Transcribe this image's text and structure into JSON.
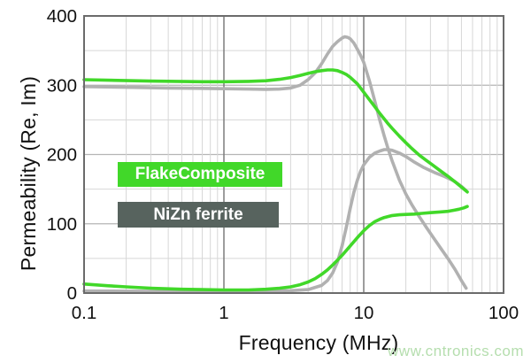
{
  "colors": {
    "flake_green": "#41d829",
    "nizn_gray": "#b1b1b1",
    "nizn_box": "#57635e",
    "legend_text": "#ffffff",
    "axis_text": "#111111",
    "plot_border": "#6b6b6b",
    "grid_major_v": "#7d7d7d",
    "grid_major_h": "#b5b5b5",
    "grid_minor": "#d7d7d7",
    "watermark_green": "#b5deae"
  },
  "legend": {
    "items": [
      {
        "label": "FlakeComposite",
        "swatch_color": "#41d829"
      },
      {
        "label": "NiZn ferrite",
        "swatch_color": "#57635e"
      }
    ]
  },
  "watermark": "www.cntronics.com",
  "chart_data": {
    "type": "line",
    "title": "",
    "xlabel": "Frequency (MHz)",
    "ylabel": "Permeability (Re, Im)",
    "xscale": "log",
    "xlim": [
      0.1,
      100
    ],
    "ylim": [
      0,
      400
    ],
    "y_grid_step": 50,
    "x_ticks": [
      {
        "value": 0.1,
        "label": "0.1"
      },
      {
        "value": 1,
        "label": "1"
      },
      {
        "value": 10,
        "label": "10"
      },
      {
        "value": 100,
        "label": "100"
      }
    ],
    "y_ticks": [
      {
        "value": 0,
        "label": "0"
      },
      {
        "value": 100,
        "label": "100"
      },
      {
        "value": 200,
        "label": "200"
      },
      {
        "value": 300,
        "label": "300"
      },
      {
        "value": 400,
        "label": "400"
      }
    ],
    "series": [
      {
        "name": "NiZn ferrite (Re)",
        "color": "#b1b1b1",
        "x": [
          0.1,
          0.2,
          0.4,
          0.7,
          1,
          1.5,
          2,
          2.5,
          3,
          3.5,
          4,
          4.5,
          5,
          5.5,
          6,
          6.5,
          7,
          7.3,
          7.7,
          8,
          8.5,
          9,
          9.5,
          10,
          11,
          12,
          13,
          14,
          15,
          16,
          18,
          20,
          22,
          25,
          28,
          32,
          36,
          40,
          45,
          50,
          54
        ],
        "values": [
          298,
          297,
          296,
          295.5,
          295,
          294.5,
          294,
          294.5,
          296,
          300,
          308,
          318,
          331,
          345,
          356,
          363,
          368,
          370,
          369,
          367,
          361,
          352,
          343,
          333,
          306,
          277,
          250,
          227,
          207,
          190,
          163,
          143,
          128,
          110,
          95,
          78,
          63,
          50,
          34,
          18,
          7
        ]
      },
      {
        "name": "NiZn ferrite (Im)",
        "color": "#b1b1b1",
        "x": [
          0.1,
          0.3,
          0.7,
          1,
          2,
          3,
          4,
          5,
          5.5,
          6,
          6.5,
          7,
          7.5,
          8,
          8.5,
          9,
          9.5,
          10,
          11,
          12,
          13,
          14,
          15,
          16,
          18,
          20,
          23,
          27,
          32,
          38,
          44,
          50,
          54
        ],
        "values": [
          3,
          2.5,
          2.5,
          2.5,
          3,
          3.5,
          5,
          11,
          18,
          29,
          45,
          68,
          95,
          122,
          145,
          163,
          176,
          185,
          196,
          202,
          205,
          207,
          207,
          206,
          202,
          197,
          189,
          181,
          174,
          168,
          162,
          154,
          148
        ]
      },
      {
        "name": "FlakeComposite (Re)",
        "color": "#41d829",
        "x": [
          0.1,
          0.3,
          0.7,
          1,
          1.5,
          2,
          2.5,
          3,
          3.5,
          4,
          4.5,
          5,
          5.5,
          6,
          6.5,
          7,
          7.5,
          8,
          9,
          10,
          11,
          12,
          13,
          14,
          15,
          16,
          18,
          20,
          22,
          25,
          28,
          31,
          35,
          40,
          45,
          50,
          55
        ],
        "values": [
          308,
          306,
          305,
          305,
          305.5,
          306.5,
          308.5,
          311,
          314,
          317,
          319.5,
          321,
          322,
          322,
          321,
          318.5,
          315.5,
          311.5,
          302,
          290,
          279,
          269,
          259.5,
          251.5,
          244,
          237.5,
          226.5,
          217,
          209,
          199,
          191.5,
          185,
          177,
          168.5,
          160.5,
          153,
          146
        ]
      },
      {
        "name": "FlakeComposite (Im)",
        "color": "#41d829",
        "x": [
          0.1,
          0.15,
          0.2,
          0.3,
          0.5,
          0.7,
          1,
          1.5,
          2,
          2.5,
          3,
          3.5,
          4,
          4.5,
          5,
          5.5,
          6,
          6.5,
          7,
          7.5,
          8,
          9,
          10,
          11,
          12,
          13,
          14,
          15,
          16,
          18,
          20,
          23,
          26,
          30,
          35,
          40,
          44,
          48,
          52,
          55
        ],
        "values": [
          13,
          10.5,
          9,
          7,
          5.5,
          5,
          4.5,
          4.5,
          5.5,
          7,
          9,
          12,
          16,
          21,
          27,
          33.5,
          40.5,
          47.5,
          54.5,
          61.5,
          68,
          80,
          90,
          97.5,
          103,
          106.5,
          109,
          110.5,
          112,
          113,
          113.5,
          114,
          115,
          116,
          117,
          118,
          119.5,
          121,
          123,
          125
        ]
      }
    ]
  }
}
